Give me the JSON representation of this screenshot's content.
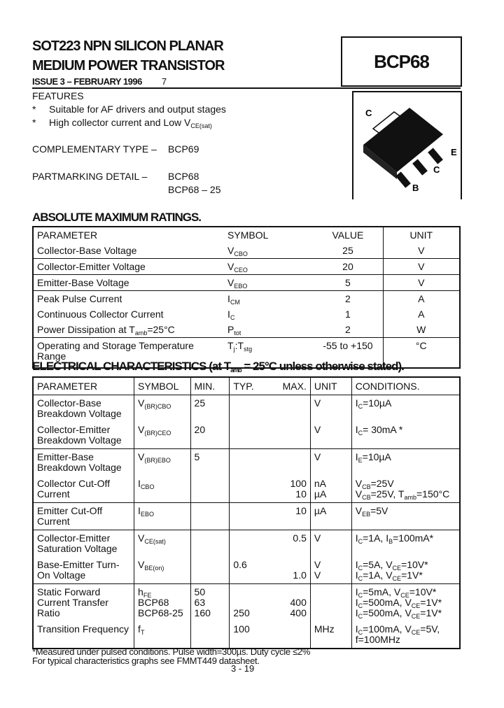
{
  "header": {
    "title_line1": "SOT223 NPN SILICON PLANAR",
    "title_line2": "MEDIUM POWER TRANSISTOR",
    "part_number": "BCP68",
    "issue": "ISSUE 3 – FEBRUARY 1996",
    "issue_mark": "7"
  },
  "features": {
    "heading": "FEATURES",
    "bullet": "*",
    "items": [
      "Suitable for AF drivers and output stages",
      "High collector current and Low V_{CE(sat)}"
    ]
  },
  "complementary": {
    "label": "COMPLEMENTARY TYPE –",
    "value": "BCP69"
  },
  "partmarking": {
    "label": "PARTMARKING DETAIL –",
    "values": [
      "BCP68",
      "BCP68 – 25"
    ]
  },
  "package": {
    "pins": {
      "tab": "C",
      "e": "E",
      "c": "C",
      "b": "B"
    }
  },
  "abs_max": {
    "heading": "ABSOLUTE MAXIMUM RATINGS.",
    "columns": [
      "PARAMETER",
      "SYMBOL",
      "VALUE",
      "UNIT"
    ],
    "rows": [
      [
        "Collector-Base Voltage",
        "V_{CBO}",
        "25",
        "V"
      ],
      [
        "Collector-Emitter Voltage",
        "V_{CEO}",
        "20",
        "V"
      ],
      [
        "Emitter-Base Voltage",
        "V_{EBO}",
        "5",
        "V"
      ],
      [
        "Peak Pulse Current",
        "I_{CM}",
        "2",
        "A"
      ],
      [
        "Continuous Collector Current",
        "I_{C}",
        "1",
        "A"
      ],
      [
        "Power Dissipation at T_{amb}=25°C",
        "P_{tot}",
        "2",
        "W"
      ],
      [
        "Operating and Storage Temperature Range",
        "T_{j}:T_{stg}",
        "-55 to +150",
        "°C"
      ]
    ]
  },
  "elec": {
    "heading": "ELECTRICAL CHARACTERISTICS (at T_{amb} = 25°C unless otherwise stated).",
    "columns": [
      "PARAMETER",
      "SYMBOL",
      "MIN.",
      "TYP.",
      "MAX.",
      "UNIT",
      "CONDITIONS."
    ],
    "rows": [
      {
        "param": "Collector-Base Breakdown Voltage",
        "symbol": "V_{(BR)CBO}",
        "min": "25",
        "typ": "",
        "max": "",
        "unit": "V",
        "cond": "I_{C}=10µA"
      },
      {
        "param": "Collector-Emitter Breakdown Voltage",
        "symbol": "V_{(BR)CEO}",
        "min": "20",
        "typ": "",
        "max": "",
        "unit": "V",
        "cond": "I_{C}= 30mA *"
      },
      {
        "param": "Emitter-Base Breakdown Voltage",
        "symbol": "V_{(BR)EBO}",
        "min": "5",
        "typ": "",
        "max": "",
        "unit": "V",
        "cond": "I_{E}=10µA"
      },
      {
        "param": "Collector Cut-Off Current",
        "symbol": "I_{CBO}",
        "min": "",
        "typ": "",
        "max": "100\n10",
        "unit": "nA\nµA",
        "cond": "V_{CB}=25V\nV_{CB}=25V, T_{amb}=150°C"
      },
      {
        "param": "Emitter Cut-Off Current",
        "symbol": "I_{EBO}",
        "min": "",
        "typ": "",
        "max": "10",
        "unit": "µA",
        "cond": "V_{EB}=5V"
      },
      {
        "param": "Collector-Emitter Saturation Voltage",
        "symbol": "V_{CE(sat)}",
        "min": "",
        "typ": "",
        "max": "0.5",
        "unit": "V",
        "cond": "I_{C}=1A, I_{B}=100mA*"
      },
      {
        "param": "Base-Emitter Turn-On Voltage",
        "symbol": "V_{BE(on)}",
        "min": "",
        "typ": "0.6",
        "max": "\n1.0",
        "unit": "V\nV",
        "cond": "I_{C}=5A, V_{CE}=10V*\nI_{C}=1A, V_{CE}=1V*"
      },
      {
        "param": "Static Forward Current Transfer Ratio",
        "symbol": "h_{FE}\nBCP68\nBCP68-25",
        "min": "50\n63\n160",
        "typ": "\n\n250",
        "max": "\n400\n400",
        "unit": "",
        "cond": "I_{C}=5mA, V_{CE}=10V*\nI_{C}=500mA, V_{CE}=1V*\nI_{C}=500mA, V_{CE}=1V*"
      },
      {
        "param": "Transition Frequency",
        "symbol": "f_{T}",
        "min": "",
        "typ": "100",
        "max": "",
        "unit": "MHz",
        "cond": "I_{C}=100mA, V_{CE}=5V,\nf=100MHz"
      }
    ]
  },
  "footnotes": [
    "*Measured under pulsed conditions. Pulse width=300µs. Duty cycle ≤2%",
    "For typical characteristics graphs see FMMT449 datasheet."
  ],
  "page_number": "3 - 19"
}
